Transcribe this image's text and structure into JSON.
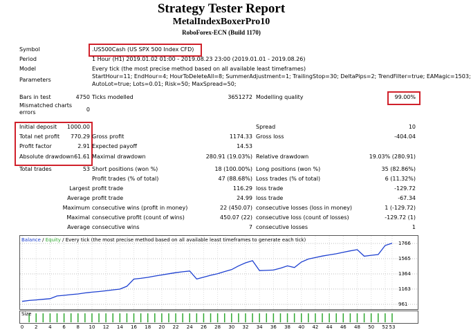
{
  "header": {
    "title": "Strategy Tester Report",
    "subtitle": "MetalIndexBoxerPro10",
    "server": "RoboForex-ECN (Build 1170)"
  },
  "info": [
    {
      "label": "Symbol",
      "value": ".US500Cash (US SPX 500 Index CFD)"
    },
    {
      "label": "Period",
      "value": "1 Hour (H1) 2019.01.02 01:00 - 2019.08.23 23:00 (2019.01.01 - 2019.08.26)"
    },
    {
      "label": "Model",
      "value": "Every tick (the most precise method based on all available least timeframes)"
    },
    {
      "label": "Parameters",
      "lines": [
        "StartHour=11; EndHour=4; HourToDeleteAll=8; SummerAdjustment=1; TrailingStop=30; DeltaPips=2; TrendFilter=true; EAMagic=1503;",
        "AutoLot=true; Lots=0.01; Risk=50; MaxSpread=50;"
      ]
    }
  ],
  "stats": [
    {
      "l1": "Bars in test",
      "v1": "4750",
      "l2": "Ticks modelled",
      "v2": "3651272",
      "l3": "Modelling quality",
      "v3": "99.00%"
    },
    {
      "l1": "Mismatched charts errors",
      "v1": "0"
    },
    {
      "l1": "Initial deposit",
      "v1": "1000.00",
      "l3": "Spread",
      "v3": "10"
    },
    {
      "l1": "Total net profit",
      "v1": "770.29",
      "l2": "Gross profit",
      "v2": "1174.33",
      "l3": "Gross loss",
      "v3": "-404.04"
    },
    {
      "l1": "Profit factor",
      "v1": "2.91",
      "l2": "Expected payoff",
      "v2": "14.53"
    },
    {
      "l1": "Absolute drawdown",
      "v1": "61.61",
      "l2": "Maximal drawdown",
      "v2": "280.91 (19.03%)",
      "l3": "Relative drawdown",
      "v3": "19.03% (280.91)"
    },
    {
      "l1": "Total trades",
      "v1": "53",
      "l2": "Short positions (won %)",
      "v2": "18 (100.00%)",
      "l3": "Long positions (won %)",
      "v3": "35 (82.86%)"
    },
    {
      "l2": "Profit trades (% of total)",
      "v2": "47 (88.68%)",
      "l3": "Loss trades (% of total)",
      "v3": "6 (11.32%)"
    },
    {
      "l1": "Largest",
      "l2": "profit trade",
      "v2": "116.29",
      "l3": "loss trade",
      "v3": "-129.72"
    },
    {
      "l1": "Average",
      "l2": "profit trade",
      "v2": "24.99",
      "l3": "loss trade",
      "v3": "-67.34"
    },
    {
      "l1": "Maximum",
      "l2": "consecutive wins (profit in money)",
      "v2": "22 (450.07)",
      "l3": "consecutive losses (loss in money)",
      "v3": "1 (-129.72)"
    },
    {
      "l1": "Maximal",
      "l2": "consecutive profit (count of wins)",
      "v2": "450.07 (22)",
      "l3": "consecutive loss (count of losses)",
      "v3": "-129.72 (1)"
    },
    {
      "l1": "Average",
      "l2": "consecutive wins",
      "v2": "7",
      "l3": "consecutive losses",
      "v3": "1"
    }
  ],
  "chart": {
    "type": "line",
    "legend_balance": "Balance",
    "legend_equity": "Equity",
    "separator": "/",
    "legend_note": "Every tick (the most precise method based on all available least timeframes to generate each tick)",
    "size_label": "Size",
    "color": "#1c3fd0",
    "size_color": "#2fa82f",
    "grid": true,
    "x": [
      0,
      1,
      2,
      3,
      4,
      5,
      6,
      7,
      8,
      9,
      10,
      11,
      12,
      13,
      14,
      15,
      16,
      17,
      18,
      19,
      20,
      21,
      22,
      23,
      24,
      25,
      26,
      27,
      28,
      29,
      30,
      31,
      32,
      33,
      34,
      35,
      36,
      37,
      38,
      39,
      40,
      41,
      42,
      43,
      44,
      45,
      46,
      47,
      48,
      49,
      50,
      51,
      52,
      53
    ],
    "values": [
      1000,
      1012,
      1020,
      1028,
      1036,
      1072,
      1080,
      1090,
      1098,
      1112,
      1122,
      1130,
      1140,
      1152,
      1162,
      1200,
      1295,
      1305,
      1318,
      1335,
      1350,
      1365,
      1380,
      1392,
      1402,
      1296,
      1320,
      1345,
      1365,
      1395,
      1420,
      1470,
      1510,
      1538,
      1408,
      1410,
      1415,
      1440,
      1470,
      1448,
      1520,
      1560,
      1580,
      1600,
      1615,
      1630,
      1650,
      1668,
      1685,
      1598,
      1610,
      1620,
      1740,
      1770
    ],
    "xlim": [
      -0.4,
      53.5
    ],
    "ylim": [
      897,
      1876
    ],
    "xticks": [
      0,
      2,
      4,
      6,
      8,
      10,
      12,
      14,
      16,
      18,
      20,
      22,
      24,
      26,
      28,
      30,
      32,
      34,
      36,
      38,
      40,
      42,
      44,
      46,
      48,
      50,
      52,
      53
    ],
    "yticks": [
      961,
      1163,
      1364,
      1565,
      1766
    ]
  }
}
